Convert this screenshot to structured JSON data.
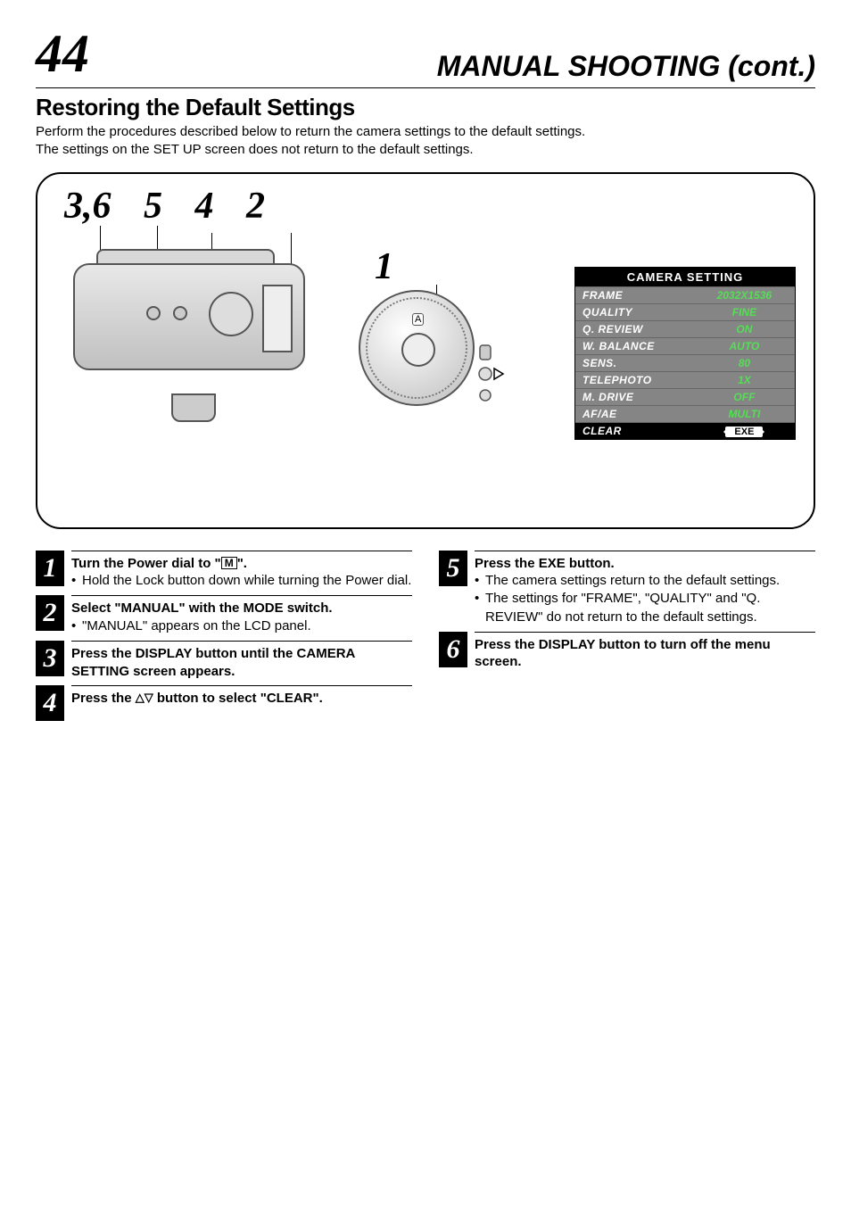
{
  "page_number": "44",
  "chapter_title": "MANUAL SHOOTING (cont.)",
  "section_title": "Restoring the Default Settings",
  "intro_line1": "Perform the procedures described below to return the camera settings to the default settings.",
  "intro_line2": "The settings on the SET UP screen does not return to the default settings.",
  "diagram": {
    "callout_36": "3,6",
    "callout_5": "5",
    "callout_4": "4",
    "callout_2": "2",
    "callout_1": "1",
    "dial_mark": "A"
  },
  "camera_setting": {
    "title": "CAMERA SETTING",
    "rows": [
      {
        "label": "FRAME",
        "value": "2032X1536",
        "selected": false
      },
      {
        "label": "QUALITY",
        "value": "FINE",
        "selected": false
      },
      {
        "label": "Q. REVIEW",
        "value": "ON",
        "selected": false
      },
      {
        "label": "W. BALANCE",
        "value": "AUTO",
        "selected": false
      },
      {
        "label": "SENS.",
        "value": "80",
        "selected": false
      },
      {
        "label": "TELEPHOTO",
        "value": "1X",
        "selected": false
      },
      {
        "label": "M. DRIVE",
        "value": "OFF",
        "selected": false
      },
      {
        "label": "AF/AE",
        "value": "MULTI",
        "selected": false
      },
      {
        "label": "CLEAR",
        "value": "EXE",
        "selected": true
      }
    ],
    "colors": {
      "row_bg": "#858585",
      "value_color": "#55de55",
      "selected_bg": "#000000",
      "selected_fg": "#ffffff"
    }
  },
  "steps": {
    "s1_head_a": "Turn the Power dial to \"",
    "s1_head_b": "\".",
    "s1_m": "M",
    "s1_b1": "Hold the Lock button down while turning the Power dial.",
    "s2_head": "Select \"MANUAL\" with the MODE switch.",
    "s2_b1": "\"MANUAL\" appears on the LCD panel.",
    "s3_head": "Press the DISPLAY button until the CAMERA SETTING screen appears.",
    "s4_head_a": "Press the ",
    "s4_head_b": " button to select \"CLEAR\".",
    "s5_head": "Press the EXE button.",
    "s5_b1": "The camera settings return to the default settings.",
    "s5_b2": "The settings for \"FRAME\", \"QUALITY\" and \"Q. REVIEW\" do not return to the default settings.",
    "s6_head": "Press the DISPLAY button to turn off the menu screen."
  }
}
